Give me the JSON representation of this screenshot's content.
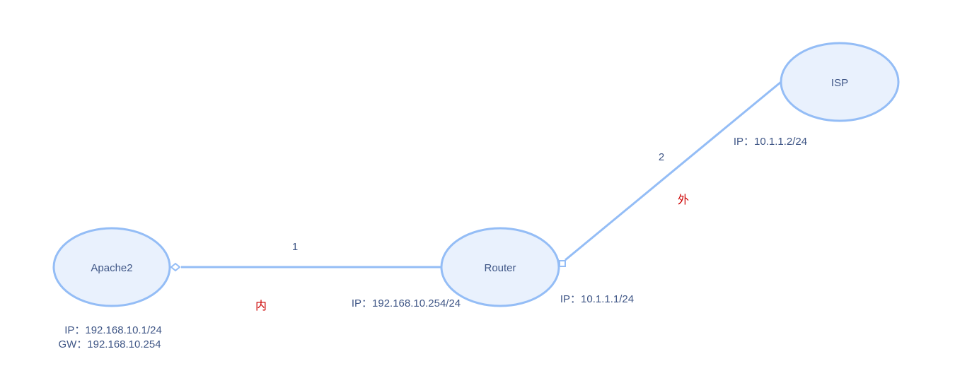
{
  "nodes": {
    "apache2": {
      "label": "Apache2"
    },
    "router": {
      "label": "Router"
    },
    "isp": {
      "label": "ISP"
    }
  },
  "links": {
    "link1": {
      "label": "1",
      "zone": "内"
    },
    "link2": {
      "label": "2",
      "zone": "外"
    }
  },
  "addresses": {
    "apache2_ip": "IP：192.168.10.1/24",
    "apache2_gw": "GW：192.168.10.254",
    "router_inner_ip": "IP：192.168.10.254/24",
    "router_outer_ip": "IP：10.1.1.1/24",
    "isp_ip": "IP：10.1.1.2/24"
  },
  "colors": {
    "node_fill": "#e9f1fd",
    "node_stroke": "#94bdf6",
    "link_stroke": "#94bdf6",
    "text": "#3f5686",
    "zone_text": "#cc0000"
  }
}
